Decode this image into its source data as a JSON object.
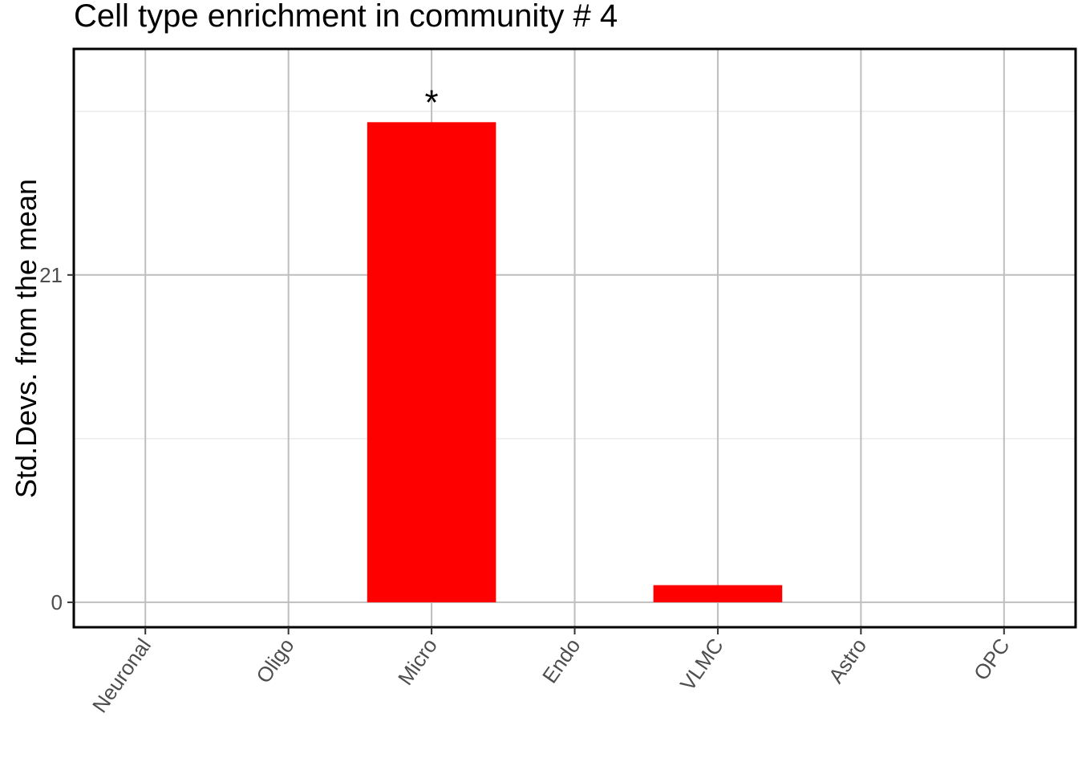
{
  "chart_data": {
    "type": "bar",
    "title": "Cell type enrichment in community # 4",
    "xlabel": "",
    "ylabel": "Std.Devs. from the mean",
    "categories": [
      "Neuronal",
      "Oligo",
      "Micro",
      "Endo",
      "VLMC",
      "Astro",
      "OPC"
    ],
    "values": [
      0,
      0,
      30.8,
      0,
      1.1,
      0,
      0
    ],
    "annotations": [
      "",
      "",
      "*",
      "",
      "",
      "",
      ""
    ],
    "yticks": [
      0,
      21
    ],
    "ylim": [
      -1.6,
      35.5
    ],
    "bar_color": "#FF0000",
    "grid": true,
    "legend": "none"
  }
}
